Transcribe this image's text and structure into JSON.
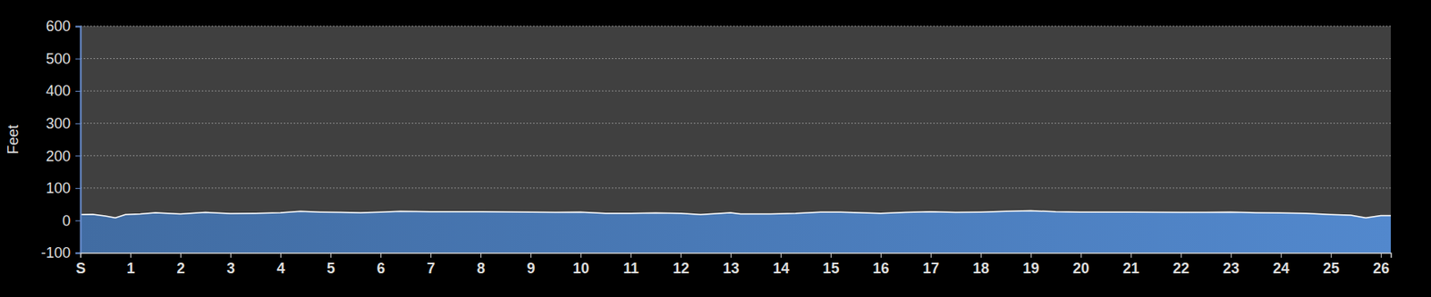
{
  "chart_data": {
    "type": "area",
    "y_label": "Feet",
    "x": [
      0,
      0.25,
      0.5,
      0.7,
      0.9,
      1.2,
      1.5,
      2,
      2.5,
      3,
      3.5,
      4,
      4.4,
      4.8,
      5.2,
      5.6,
      6,
      6.4,
      7,
      8,
      9,
      9.5,
      10,
      10.5,
      11,
      11.5,
      12,
      12.4,
      12.8,
      13,
      13.2,
      13.8,
      14.3,
      14.8,
      15.2,
      15.6,
      16,
      16.5,
      17,
      17.5,
      18,
      18.5,
      19,
      19.5,
      20,
      21,
      22,
      22.5,
      23,
      23.5,
      24,
      24.5,
      25,
      25.4,
      25.7,
      26,
      26.2
    ],
    "values": [
      18,
      19,
      14,
      8,
      18,
      20,
      24,
      20,
      25,
      21,
      22,
      24,
      28,
      26,
      25,
      24,
      26,
      28,
      27,
      27,
      26,
      25,
      26,
      22,
      22,
      23,
      22,
      18,
      22,
      24,
      20,
      20,
      22,
      26,
      26,
      24,
      22,
      25,
      27,
      25,
      26,
      28,
      30,
      27,
      26,
      26,
      25,
      25,
      26,
      24,
      23,
      22,
      18,
      16,
      8,
      15,
      15
    ],
    "xlim": [
      0,
      26.2
    ],
    "ylim": [
      -100,
      600
    ],
    "xticks": [
      {
        "value": 0,
        "label": "S"
      },
      1,
      2,
      3,
      4,
      5,
      6,
      7,
      8,
      9,
      10,
      11,
      12,
      13,
      14,
      15,
      16,
      17,
      18,
      19,
      20,
      21,
      22,
      23,
      24,
      25,
      26
    ],
    "yticks": [
      -100,
      0,
      100,
      200,
      300,
      400,
      500,
      600
    ],
    "grid": true,
    "color": "#4a7ab8"
  }
}
